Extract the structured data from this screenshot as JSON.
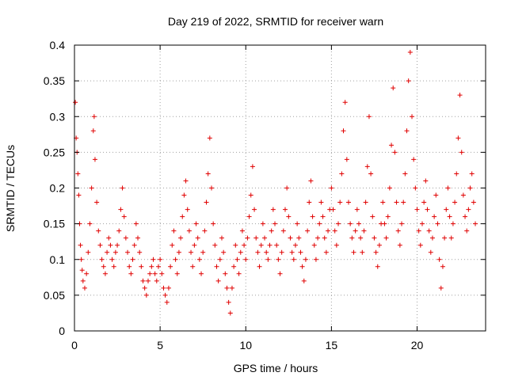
{
  "chart_data": {
    "type": "scatter",
    "title": "Day 219 of 2022, SRMTID for receiver warn",
    "xlabel": "GPS time / hours",
    "ylabel": "SRMTID / TECUs",
    "xlim": [
      0,
      24
    ],
    "ylim": [
      0,
      0.4
    ],
    "xticks": [
      0,
      5,
      10,
      15,
      20
    ],
    "yticks": [
      0,
      0.05,
      0.1,
      0.15,
      0.2,
      0.25,
      0.3,
      0.35,
      0.4
    ],
    "xtick_labels": [
      "0",
      "5",
      "10",
      "15",
      "20"
    ],
    "ytick_labels": [
      "0",
      "0.05",
      "0.1",
      "0.15",
      "0.2",
      "0.25",
      "0.3",
      "0.35",
      "0.4"
    ],
    "grid": true,
    "marker": "+",
    "marker_color": "#e00000",
    "series": [
      {
        "name": "SRMTID",
        "points": [
          [
            0.05,
            0.32
          ],
          [
            0.1,
            0.27
          ],
          [
            0.15,
            0.25
          ],
          [
            0.2,
            0.22
          ],
          [
            0.25,
            0.19
          ],
          [
            0.3,
            0.15
          ],
          [
            0.35,
            0.12
          ],
          [
            0.4,
            0.1
          ],
          [
            0.45,
            0.085
          ],
          [
            0.5,
            0.07
          ],
          [
            0.6,
            0.06
          ],
          [
            0.7,
            0.08
          ],
          [
            0.8,
            0.11
          ],
          [
            0.9,
            0.15
          ],
          [
            1.0,
            0.2
          ],
          [
            1.1,
            0.28
          ],
          [
            1.15,
            0.3
          ],
          [
            1.2,
            0.24
          ],
          [
            1.3,
            0.18
          ],
          [
            1.4,
            0.14
          ],
          [
            1.5,
            0.12
          ],
          [
            1.6,
            0.1
          ],
          [
            1.7,
            0.09
          ],
          [
            1.8,
            0.08
          ],
          [
            1.9,
            0.11
          ],
          [
            2.0,
            0.13
          ],
          [
            2.1,
            0.12
          ],
          [
            2.2,
            0.1
          ],
          [
            2.3,
            0.09
          ],
          [
            2.4,
            0.11
          ],
          [
            2.5,
            0.12
          ],
          [
            2.6,
            0.14
          ],
          [
            2.7,
            0.17
          ],
          [
            2.8,
            0.2
          ],
          [
            2.9,
            0.16
          ],
          [
            3.0,
            0.13
          ],
          [
            3.1,
            0.11
          ],
          [
            3.2,
            0.09
          ],
          [
            3.3,
            0.08
          ],
          [
            3.4,
            0.1
          ],
          [
            3.5,
            0.12
          ],
          [
            3.6,
            0.15
          ],
          [
            3.7,
            0.13
          ],
          [
            3.8,
            0.11
          ],
          [
            3.9,
            0.09
          ],
          [
            4.0,
            0.07
          ],
          [
            4.1,
            0.06
          ],
          [
            4.2,
            0.05
          ],
          [
            4.3,
            0.07
          ],
          [
            4.4,
            0.08
          ],
          [
            4.5,
            0.09
          ],
          [
            4.6,
            0.1
          ],
          [
            4.7,
            0.08
          ],
          [
            4.8,
            0.07
          ],
          [
            4.9,
            0.09
          ],
          [
            5.0,
            0.1
          ],
          [
            5.1,
            0.08
          ],
          [
            5.2,
            0.06
          ],
          [
            5.3,
            0.05
          ],
          [
            5.4,
            0.04
          ],
          [
            5.5,
            0.06
          ],
          [
            5.6,
            0.09
          ],
          [
            5.7,
            0.12
          ],
          [
            5.8,
            0.14
          ],
          [
            5.9,
            0.1
          ],
          [
            6.0,
            0.08
          ],
          [
            6.1,
            0.11
          ],
          [
            6.2,
            0.13
          ],
          [
            6.3,
            0.16
          ],
          [
            6.4,
            0.19
          ],
          [
            6.5,
            0.21
          ],
          [
            6.6,
            0.17
          ],
          [
            6.7,
            0.14
          ],
          [
            6.8,
            0.11
          ],
          [
            6.9,
            0.09
          ],
          [
            7.0,
            0.12
          ],
          [
            7.1,
            0.15
          ],
          [
            7.2,
            0.13
          ],
          [
            7.3,
            0.1
          ],
          [
            7.4,
            0.08
          ],
          [
            7.5,
            0.11
          ],
          [
            7.6,
            0.14
          ],
          [
            7.7,
            0.18
          ],
          [
            7.8,
            0.22
          ],
          [
            7.9,
            0.27
          ],
          [
            8.0,
            0.2
          ],
          [
            8.1,
            0.15
          ],
          [
            8.2,
            0.12
          ],
          [
            8.3,
            0.09
          ],
          [
            8.4,
            0.07
          ],
          [
            8.5,
            0.1
          ],
          [
            8.6,
            0.13
          ],
          [
            8.7,
            0.11
          ],
          [
            8.8,
            0.08
          ],
          [
            8.9,
            0.06
          ],
          [
            9.0,
            0.04
          ],
          [
            9.1,
            0.025
          ],
          [
            9.2,
            0.06
          ],
          [
            9.3,
            0.09
          ],
          [
            9.4,
            0.12
          ],
          [
            9.5,
            0.1
          ],
          [
            9.6,
            0.08
          ],
          [
            9.7,
            0.11
          ],
          [
            9.8,
            0.14
          ],
          [
            9.9,
            0.12
          ],
          [
            10.0,
            0.1
          ],
          [
            10.1,
            0.13
          ],
          [
            10.2,
            0.16
          ],
          [
            10.3,
            0.19
          ],
          [
            10.4,
            0.23
          ],
          [
            10.5,
            0.17
          ],
          [
            10.6,
            0.13
          ],
          [
            10.7,
            0.11
          ],
          [
            10.8,
            0.09
          ],
          [
            10.9,
            0.12
          ],
          [
            11.0,
            0.15
          ],
          [
            11.1,
            0.13
          ],
          [
            11.2,
            0.11
          ],
          [
            11.3,
            0.1
          ],
          [
            11.4,
            0.12
          ],
          [
            11.5,
            0.14
          ],
          [
            11.6,
            0.17
          ],
          [
            11.7,
            0.15
          ],
          [
            11.8,
            0.12
          ],
          [
            11.9,
            0.1
          ],
          [
            12.0,
            0.08
          ],
          [
            12.1,
            0.11
          ],
          [
            12.2,
            0.14
          ],
          [
            12.3,
            0.17
          ],
          [
            12.4,
            0.2
          ],
          [
            12.5,
            0.16
          ],
          [
            12.6,
            0.13
          ],
          [
            12.7,
            0.11
          ],
          [
            12.8,
            0.1
          ],
          [
            12.9,
            0.12
          ],
          [
            13.0,
            0.15
          ],
          [
            13.1,
            0.13
          ],
          [
            13.2,
            0.11
          ],
          [
            13.3,
            0.09
          ],
          [
            13.4,
            0.07
          ],
          [
            13.5,
            0.1
          ],
          [
            13.6,
            0.14
          ],
          [
            13.7,
            0.18
          ],
          [
            13.8,
            0.21
          ],
          [
            13.9,
            0.16
          ],
          [
            14.0,
            0.12
          ],
          [
            14.1,
            0.1
          ],
          [
            14.2,
            0.13
          ],
          [
            14.3,
            0.15
          ],
          [
            14.4,
            0.18
          ],
          [
            14.5,
            0.16
          ],
          [
            14.6,
            0.13
          ],
          [
            14.7,
            0.11
          ],
          [
            14.8,
            0.14
          ],
          [
            14.9,
            0.17
          ],
          [
            15.0,
            0.2
          ],
          [
            15.1,
            0.17
          ],
          [
            15.2,
            0.14
          ],
          [
            15.3,
            0.12
          ],
          [
            15.4,
            0.15
          ],
          [
            15.5,
            0.18
          ],
          [
            15.6,
            0.22
          ],
          [
            15.7,
            0.28
          ],
          [
            15.8,
            0.32
          ],
          [
            15.9,
            0.24
          ],
          [
            16.0,
            0.18
          ],
          [
            16.1,
            0.15
          ],
          [
            16.2,
            0.13
          ],
          [
            16.3,
            0.11
          ],
          [
            16.4,
            0.14
          ],
          [
            16.5,
            0.17
          ],
          [
            16.6,
            0.15
          ],
          [
            16.7,
            0.13
          ],
          [
            16.8,
            0.11
          ],
          [
            16.9,
            0.14
          ],
          [
            17.0,
            0.18
          ],
          [
            17.1,
            0.23
          ],
          [
            17.2,
            0.3
          ],
          [
            17.3,
            0.22
          ],
          [
            17.4,
            0.16
          ],
          [
            17.5,
            0.13
          ],
          [
            17.6,
            0.11
          ],
          [
            17.7,
            0.09
          ],
          [
            17.8,
            0.12
          ],
          [
            17.9,
            0.15
          ],
          [
            18.0,
            0.18
          ],
          [
            18.1,
            0.15
          ],
          [
            18.2,
            0.13
          ],
          [
            18.3,
            0.16
          ],
          [
            18.4,
            0.2
          ],
          [
            18.5,
            0.26
          ],
          [
            18.6,
            0.34
          ],
          [
            18.7,
            0.25
          ],
          [
            18.8,
            0.18
          ],
          [
            18.9,
            0.14
          ],
          [
            19.0,
            0.12
          ],
          [
            19.1,
            0.15
          ],
          [
            19.2,
            0.18
          ],
          [
            19.3,
            0.22
          ],
          [
            19.4,
            0.28
          ],
          [
            19.5,
            0.35
          ],
          [
            19.6,
            0.39
          ],
          [
            19.7,
            0.3
          ],
          [
            19.8,
            0.24
          ],
          [
            19.9,
            0.2
          ],
          [
            20.0,
            0.17
          ],
          [
            20.1,
            0.14
          ],
          [
            20.2,
            0.12
          ],
          [
            20.3,
            0.15
          ],
          [
            20.4,
            0.18
          ],
          [
            20.5,
            0.21
          ],
          [
            20.6,
            0.17
          ],
          [
            20.7,
            0.14
          ],
          [
            20.8,
            0.11
          ],
          [
            20.9,
            0.13
          ],
          [
            21.0,
            0.16
          ],
          [
            21.1,
            0.19
          ],
          [
            21.2,
            0.15
          ],
          [
            21.3,
            0.1
          ],
          [
            21.4,
            0.06
          ],
          [
            21.5,
            0.09
          ],
          [
            21.6,
            0.13
          ],
          [
            21.7,
            0.17
          ],
          [
            21.8,
            0.2
          ],
          [
            21.9,
            0.16
          ],
          [
            22.0,
            0.13
          ],
          [
            22.1,
            0.15
          ],
          [
            22.2,
            0.18
          ],
          [
            22.3,
            0.22
          ],
          [
            22.4,
            0.27
          ],
          [
            22.5,
            0.33
          ],
          [
            22.6,
            0.25
          ],
          [
            22.7,
            0.19
          ],
          [
            22.8,
            0.16
          ],
          [
            22.9,
            0.14
          ],
          [
            23.0,
            0.17
          ],
          [
            23.1,
            0.2
          ],
          [
            23.2,
            0.22
          ],
          [
            23.3,
            0.18
          ],
          [
            23.4,
            0.15
          ]
        ]
      }
    ]
  }
}
